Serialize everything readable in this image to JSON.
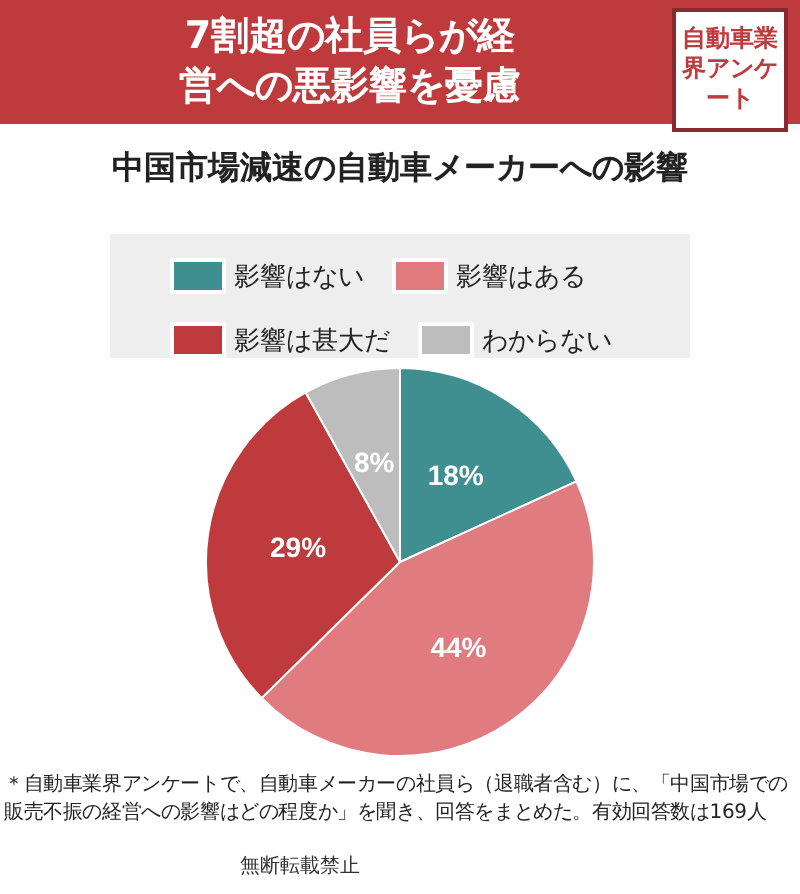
{
  "chart_data": {
    "type": "pie",
    "title": "7割超の社員らが経営への悪影響を憂慮",
    "subtitle": "中国市場減速の自動車メーカーへの影響",
    "categories": [
      "影響はない",
      "影響はある",
      "影響は甚大だ",
      "わからない"
    ],
    "values": [
      18,
      44,
      29,
      8
    ],
    "colors": [
      "#3f8f90",
      "#e07b7f",
      "#bf3a3c",
      "#bdbdbd"
    ],
    "value_labels": [
      "18%",
      "44%",
      "29%",
      "8%"
    ],
    "legend": "top",
    "annotations": [
      "自動車業界アンケート",
      "＊自動車業界アンケートで、自動車メーカーの社員ら（退職者含む）に、「中国市場での販売不振の経営への影響はどの程度か」を聞き、回答をまとめた。有効回答数は169人",
      "無断転載禁止"
    ]
  }
}
